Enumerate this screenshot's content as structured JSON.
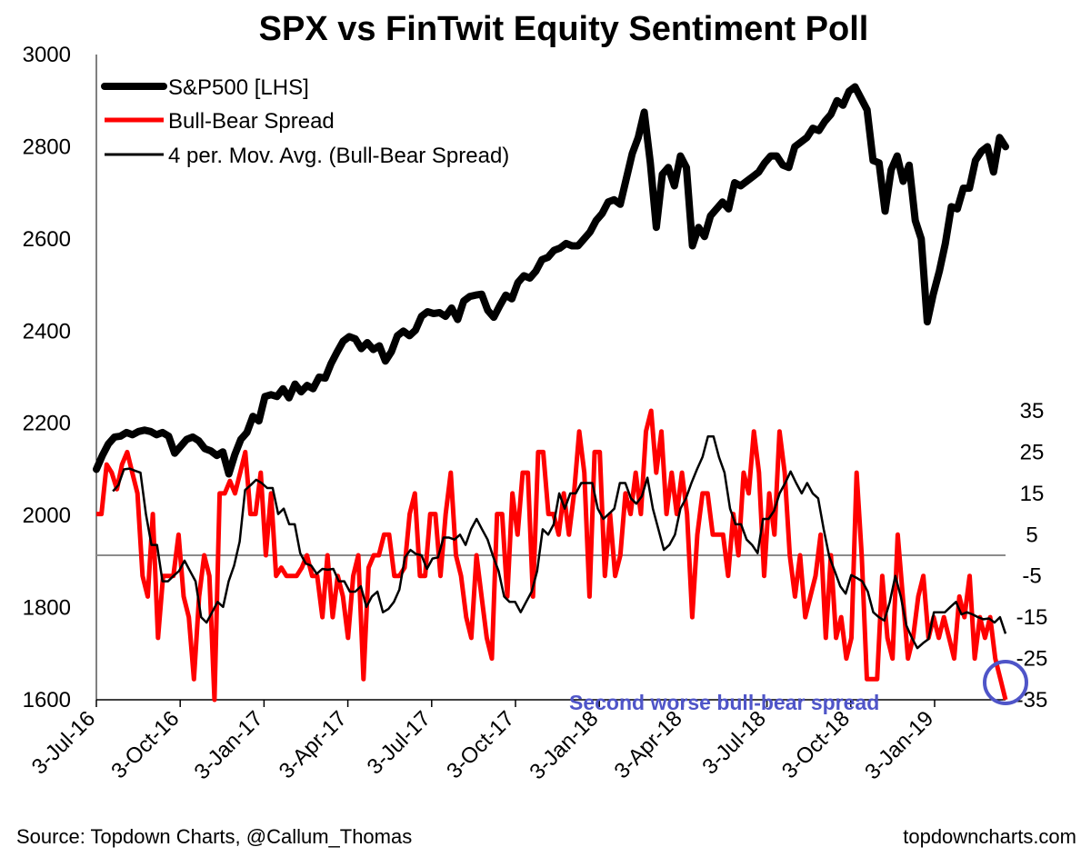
{
  "chart_data": {
    "type": "line",
    "title": "SPX vs FinTwit Equity Sentiment Poll",
    "x_tick_labels": [
      "3-Jul-16",
      "3-Oct-16",
      "3-Jan-17",
      "3-Apr-17",
      "3-Jul-17",
      "3-Oct-17",
      "3-Jan-18",
      "3-Apr-18",
      "3-Jul-18",
      "3-Oct-18",
      "3-Jan-19"
    ],
    "x_range_weeks": [
      0,
      141
    ],
    "y_left": {
      "range": [
        1600,
        3000
      ],
      "ticks": [
        "1600",
        "1800",
        "2000",
        "2200",
        "2400",
        "2600",
        "2800",
        "3000"
      ]
    },
    "y_right": {
      "range": [
        -35,
        35
      ],
      "ticks": [
        "35",
        "25",
        "15",
        "5",
        "-5",
        "-15",
        "-25",
        "-35"
      ]
    },
    "zero_line_value": 0,
    "legend": [
      "S&P500 [LHS]",
      "Bull-Bear Spread",
      "4 per. Mov. Avg. (Bull-Bear Spread)"
    ],
    "series": [
      {
        "name": "S&P500 [LHS]",
        "axis": "left",
        "color": "#000000",
        "values": [
          2100,
          2130,
          2155,
          2170,
          2172,
          2180,
          2175,
          2182,
          2185,
          2182,
          2175,
          2180,
          2172,
          2135,
          2150,
          2165,
          2170,
          2162,
          2145,
          2140,
          2130,
          2138,
          2090,
          2132,
          2165,
          2180,
          2215,
          2205,
          2258,
          2262,
          2258,
          2275,
          2255,
          2285,
          2268,
          2282,
          2275,
          2300,
          2298,
          2330,
          2355,
          2378,
          2388,
          2383,
          2362,
          2375,
          2360,
          2368,
          2335,
          2355,
          2390,
          2400,
          2390,
          2402,
          2432,
          2442,
          2438,
          2440,
          2432,
          2450,
          2425,
          2465,
          2475,
          2478,
          2480,
          2445,
          2430,
          2455,
          2478,
          2470,
          2505,
          2520,
          2515,
          2530,
          2555,
          2560,
          2575,
          2580,
          2590,
          2585,
          2585,
          2600,
          2615,
          2640,
          2655,
          2680,
          2685,
          2675,
          2730,
          2785,
          2820,
          2875,
          2765,
          2625,
          2740,
          2755,
          2715,
          2780,
          2755,
          2585,
          2625,
          2605,
          2650,
          2665,
          2680,
          2665,
          2722,
          2715,
          2725,
          2735,
          2745,
          2765,
          2780,
          2780,
          2760,
          2755,
          2800,
          2810,
          2820,
          2840,
          2835,
          2855,
          2870,
          2900,
          2890,
          2920,
          2930,
          2905,
          2880,
          2770,
          2765,
          2660,
          2750,
          2780,
          2725,
          2760,
          2640,
          2600,
          2420,
          2480,
          2530,
          2590,
          2670,
          2665,
          2710,
          2710,
          2770,
          2790,
          2800,
          2745,
          2820,
          2800
        ]
      },
      {
        "name": "Bull-Bear Spread",
        "axis": "right",
        "color": "#ff0000",
        "values": [
          10,
          10,
          22,
          20,
          16,
          22,
          25,
          20,
          15,
          -5,
          -10,
          10,
          -20,
          -5,
          -5,
          -5,
          5,
          -10,
          -15,
          -30,
          -10,
          0,
          -5,
          -35,
          15,
          15,
          18,
          15,
          20,
          25,
          10,
          10,
          20,
          0,
          15,
          -5,
          -3,
          -5,
          -5,
          -5,
          -3,
          0,
          -5,
          -5,
          -15,
          0,
          -15,
          -5,
          -10,
          -20,
          -5,
          0,
          -30,
          -3,
          0,
          0,
          5,
          5,
          -5,
          -5,
          -3,
          10,
          15,
          -5,
          -5,
          10,
          10,
          -5,
          10,
          20,
          0,
          -5,
          -15,
          -20,
          0,
          -10,
          -20,
          -25,
          10,
          10,
          -10,
          15,
          5,
          20,
          20,
          -10,
          25,
          25,
          10,
          10,
          5,
          15,
          5,
          15,
          30,
          20,
          -10,
          25,
          25,
          -5,
          10,
          -5,
          0,
          15,
          10,
          20,
          10,
          30,
          35,
          20,
          30,
          10,
          20,
          10,
          20,
          10,
          -15,
          5,
          15,
          15,
          5,
          5,
          5,
          -5,
          10,
          0,
          20,
          15,
          30,
          20,
          -5,
          15,
          5,
          30,
          20,
          0,
          -10,
          0,
          -15,
          -10,
          -5,
          5,
          -20,
          0,
          -20,
          -15,
          -25,
          -20,
          20,
          0,
          -30,
          -30,
          -30,
          -5,
          -20,
          -25,
          5,
          -10,
          -25,
          -20,
          -10,
          -5,
          -20,
          -15,
          -20,
          -15,
          -20,
          -25,
          -10,
          -15,
          -5,
          -25,
          -15,
          -20,
          -15,
          -25,
          -30,
          -35
        ]
      },
      {
        "name": "4 per. Mov. Avg. (Bull-Bear Spread)",
        "axis": "right",
        "color": "#000000",
        "values": [
          null,
          null,
          null,
          15.5,
          17,
          20.8,
          21,
          20.5,
          20,
          10,
          2.5,
          2.5,
          -6.3,
          -6.3,
          -5,
          -3.8,
          -1.3,
          -3.8,
          -6.3,
          -15,
          -16.3,
          -13.8,
          -11.3,
          -12.5,
          -6.3,
          -2.5,
          3.3,
          15.8,
          17,
          18.3,
          17.5,
          16.3,
          16.3,
          10,
          11.3,
          7.5,
          7.5,
          0.5,
          -2,
          -2.5,
          -4.5,
          -3.3,
          -3.5,
          -3.3,
          -6.3,
          -6.3,
          -8.8,
          -8.8,
          -7.5,
          -12.5,
          -10,
          -8.8,
          -13.8,
          -13,
          -11.3,
          -8.3,
          -0.5,
          1.3,
          0.3,
          0,
          -3.3,
          -0.8,
          -0.5,
          4.3,
          4.3,
          3.8,
          5,
          2.5,
          6.3,
          8.8,
          6.3,
          3.8,
          -0.3,
          -3.8,
          -10,
          -11.3,
          -11.3,
          -13.8,
          -11.3,
          -8.8,
          -3.8,
          6.3,
          5,
          7.5,
          15,
          11.3,
          15,
          15,
          17.5,
          17.5,
          17.5,
          11.3,
          8.8,
          10,
          11.3,
          17.5,
          17.5,
          13.8,
          12.5,
          14.3,
          18.8,
          11.3,
          6.3,
          1.3,
          2.5,
          5,
          11.3,
          13.8,
          17.5,
          20.8,
          23.8,
          28.8,
          28.8,
          23.8,
          20,
          11.3,
          7.5,
          7.5,
          3.8,
          2.5,
          0.5,
          8.8,
          8.8,
          10.8,
          15,
          17.5,
          20.3,
          17.5,
          15,
          17.5,
          15,
          13.8,
          6.3,
          -0.3,
          -3.8,
          -7.5,
          -9.3,
          -4.8,
          -5.5,
          -6.3,
          -8.8,
          -13.8,
          -15,
          -15.8,
          -11.3,
          -5,
          -10,
          -17,
          -20,
          -22.5,
          -21.3,
          -20.3,
          -13.8,
          -13.8,
          -13.8,
          -12.5,
          -11.3,
          -14.3,
          -13.8,
          -14.3,
          -15,
          -15.5,
          -15.3,
          -16.3,
          -15,
          -19
        ]
      }
    ],
    "annotation": {
      "text": "Second worse bull-bear spread",
      "color": "#4f55c8"
    }
  },
  "footer": {
    "source": "Source: Topdown Charts, @Callum_Thomas",
    "site": "topdowncharts.com"
  }
}
